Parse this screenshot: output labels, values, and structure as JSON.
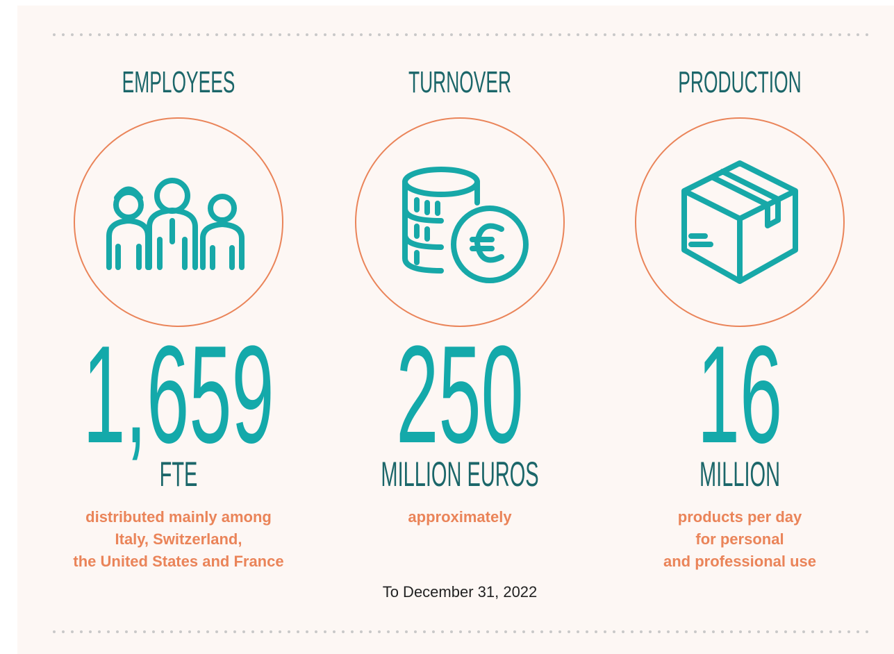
{
  "stats": [
    {
      "title": "EMPLOYEES",
      "value": "1,659",
      "unit": "FTE",
      "description": [
        "distributed mainly among",
        "Italy, Switzerland,",
        "the United States and France"
      ]
    },
    {
      "title": "TURNOVER",
      "value": "250",
      "unit": "MILLION EUROS",
      "description": [
        "approximately"
      ]
    },
    {
      "title": "PRODUCTION",
      "value": "16",
      "unit": "MILLION",
      "description": [
        "products per day",
        "for personal",
        "and professional use"
      ]
    }
  ],
  "footnote": "To December 31, 2022"
}
